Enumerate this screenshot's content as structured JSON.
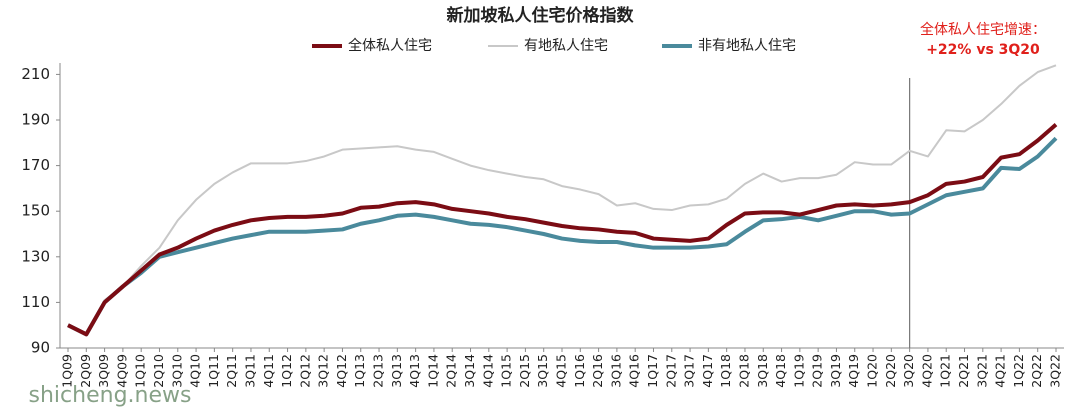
{
  "chart_data": {
    "type": "line",
    "title": "新加坡私人住宅价格指数",
    "annotation": [
      "全体私人住宅增速：",
      "+22% vs 3Q20"
    ],
    "annotation_color": "#e0201b",
    "watermark": "shicheng.news",
    "vline_at": "3Q20",
    "categories": [
      "1Q09",
      "2Q09",
      "3Q09",
      "4Q09",
      "1Q10",
      "2Q10",
      "3Q10",
      "4Q10",
      "1Q11",
      "2Q11",
      "3Q11",
      "4Q11",
      "1Q12",
      "2Q12",
      "3Q12",
      "4Q12",
      "1Q13",
      "2Q13",
      "3Q13",
      "4Q13",
      "1Q14",
      "2Q14",
      "3Q14",
      "4Q14",
      "1Q15",
      "2Q15",
      "3Q15",
      "4Q15",
      "1Q16",
      "2Q16",
      "3Q16",
      "4Q16",
      "1Q17",
      "2Q17",
      "3Q17",
      "4Q17",
      "1Q18",
      "2Q18",
      "3Q18",
      "4Q18",
      "1Q19",
      "2Q19",
      "3Q19",
      "4Q19",
      "1Q20",
      "2Q20",
      "3Q20",
      "4Q20",
      "1Q21",
      "2Q21",
      "3Q21",
      "4Q21",
      "1Q22",
      "2Q22",
      "3Q22"
    ],
    "series": [
      {
        "name": "全体私人住宅",
        "color": "#7b0c14",
        "width": 4,
        "values": [
          100,
          96,
          110,
          117,
          124,
          131,
          134,
          138,
          141.5,
          144,
          146,
          147,
          147.5,
          147.5,
          148,
          149,
          151.5,
          152,
          153.5,
          154,
          153,
          151,
          150,
          149,
          147.5,
          146.5,
          145,
          143.5,
          142.5,
          142,
          141,
          140.5,
          138,
          137.5,
          137,
          138,
          144,
          149,
          149.5,
          149.5,
          148.5,
          150.5,
          152.5,
          153,
          152.5,
          153,
          154,
          157,
          162,
          163,
          165,
          173.5,
          175,
          181,
          188
        ]
      },
      {
        "name": "有地私人住宅",
        "color": "#c8c8c8",
        "width": 2,
        "values": [
          100,
          96,
          111,
          117,
          126,
          134,
          146,
          155,
          162,
          167,
          171,
          171,
          171,
          172,
          174,
          177,
          177.5,
          178,
          178.5,
          177,
          176,
          173,
          170,
          168,
          166.5,
          165,
          164,
          161,
          159.5,
          157.5,
          152.5,
          153.5,
          151,
          150.5,
          152.5,
          153,
          155.5,
          162,
          166.5,
          163,
          164.5,
          164.5,
          166,
          171.5,
          170.5,
          170.5,
          176.5,
          174,
          185.5,
          185,
          190,
          197,
          205,
          211,
          214
        ]
      },
      {
        "name": "非有地私人住宅",
        "color": "#4a8a9c",
        "width": 4,
        "values": [
          100,
          96,
          110,
          117,
          123,
          130,
          132,
          134,
          136,
          138,
          139.5,
          141,
          141,
          141,
          141.5,
          142,
          144.5,
          146,
          148,
          148.5,
          147.5,
          146,
          144.5,
          144,
          143,
          141.5,
          140,
          138,
          137,
          136.5,
          136.5,
          135,
          134,
          134,
          134,
          134.5,
          135.5,
          141,
          146,
          146.5,
          147.5,
          146,
          148,
          150,
          150,
          148.5,
          149,
          153,
          157,
          158.5,
          160,
          169,
          168.5,
          174,
          182
        ]
      }
    ],
    "ylim": [
      90,
      215
    ],
    "yticks": [
      90,
      110,
      130,
      150,
      170,
      190,
      210
    ]
  }
}
